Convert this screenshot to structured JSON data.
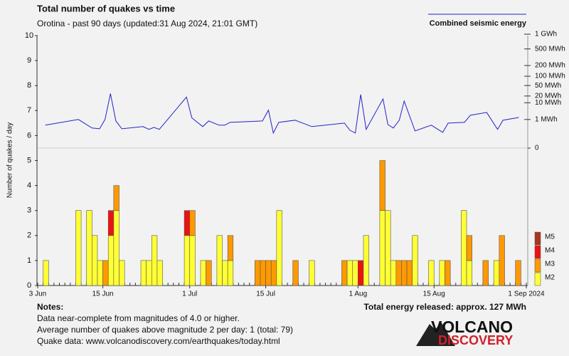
{
  "chart_data": {
    "type": "bar",
    "title": "Total number of quakes vs time",
    "subtitle": "Orotina - past 90 days (updated:31 Aug 2024, 21:01 GMT)",
    "y_label": "Number of quakes / day",
    "stacked": true,
    "xlim": [
      0,
      90
    ],
    "xticks": [
      {
        "value": 0,
        "label": "3 Jun"
      },
      {
        "value": 12,
        "label": "15 Jun"
      },
      {
        "value": 28,
        "label": "1 Jul"
      },
      {
        "value": 42,
        "label": "15 Jul"
      },
      {
        "value": 59,
        "label": "1 Aug"
      },
      {
        "value": 73,
        "label": "15 Aug"
      },
      {
        "value": 90,
        "label": "1 Sep 2024"
      }
    ],
    "ylim": [
      0,
      10
    ],
    "yticks": [
      0,
      1,
      2,
      3,
      4,
      5,
      6,
      7,
      8,
      9,
      10
    ],
    "y2lim": [
      0,
      1000
    ],
    "y2exponent": 0.2,
    "y2ticks": [
      0,
      {
        "value": 1,
        "label": "1 MWh"
      },
      {
        "value": 10,
        "label": "10 MWh"
      },
      {
        "value": 20,
        "label": "20 MWh"
      },
      {
        "value": 50,
        "label": "50 MWh"
      },
      {
        "value": 100,
        "label": "100 MWh"
      },
      {
        "value": 200,
        "label": "200 MWh"
      },
      {
        "value": 500,
        "label": "500 MWh"
      },
      {
        "value": 1000,
        "label": "1 GWh"
      }
    ],
    "x": [
      1,
      7,
      9,
      10,
      11,
      12,
      13,
      14,
      15,
      19,
      20,
      21,
      22,
      27,
      28,
      30,
      31,
      33,
      34,
      35,
      40,
      41,
      42,
      43,
      44,
      47,
      50,
      56,
      57,
      58,
      59,
      60,
      63,
      64,
      65,
      66,
      67,
      68,
      69,
      72,
      74,
      75,
      78,
      79,
      82,
      84,
      85,
      88
    ],
    "series": [
      {
        "name": "M2",
        "color": "#ffff33",
        "values": [
          1,
          3,
          3,
          2,
          1,
          0,
          2,
          3,
          1,
          1,
          1,
          2,
          1,
          2,
          2,
          1,
          0,
          2,
          1,
          1,
          0,
          0,
          0,
          0,
          3,
          0,
          1,
          0,
          1,
          1,
          0,
          2,
          3,
          3,
          1,
          0,
          0,
          0,
          2,
          1,
          1,
          0,
          3,
          1,
          0,
          1,
          0,
          0
        ]
      },
      {
        "name": "M3",
        "color": "#ff9900",
        "values": [
          0,
          0,
          0,
          0,
          0,
          1,
          0,
          1,
          0,
          0,
          0,
          0,
          0,
          0,
          1,
          0,
          1,
          0,
          0,
          1,
          1,
          1,
          1,
          1,
          0,
          1,
          0,
          1,
          0,
          0,
          0,
          0,
          2,
          0,
          0,
          1,
          1,
          1,
          0,
          0,
          0,
          1,
          0,
          1,
          1,
          0,
          2,
          1
        ]
      },
      {
        "name": "M4",
        "color": "#ee1111",
        "values": [
          0,
          0,
          0,
          0,
          0,
          0,
          1,
          0,
          0,
          0,
          0,
          0,
          0,
          1,
          0,
          0,
          0,
          0,
          0,
          0,
          0,
          0,
          0,
          0,
          0,
          0,
          0,
          0,
          0,
          0,
          1,
          0,
          0,
          0,
          0,
          0,
          0,
          0,
          0,
          0,
          0,
          0,
          0,
          0,
          0,
          0,
          0,
          0
        ]
      },
      {
        "name": "M5",
        "color": "#aa3322",
        "values": [
          0,
          0,
          0,
          0,
          0,
          0,
          0,
          0,
          0,
          0,
          0,
          0,
          0,
          0,
          0,
          0,
          0,
          0,
          0,
          0,
          0,
          0,
          0,
          0,
          0,
          0,
          0,
          0,
          0,
          0,
          0,
          0,
          0,
          0,
          0,
          0,
          0,
          0,
          0,
          0,
          0,
          0,
          0,
          0,
          0,
          0,
          0,
          0
        ]
      },
      {
        "name": "Combined seismic energy",
        "type": "line",
        "axis": "y2",
        "color": "#2222cc",
        "x": [
          1.4,
          7.5,
          10,
          11.4,
          12.4,
          13.4,
          14.4,
          15.5,
          19.4,
          20.5,
          21.4,
          22.4,
          27.4,
          28.4,
          30.4,
          31.5,
          33.4,
          34.5,
          35.4,
          41.4,
          42.5,
          43.4,
          44.4,
          47.4,
          50.5,
          56.5,
          57.5,
          58.5,
          59.5,
          60.5,
          63.6,
          64.5,
          65.5,
          66.6,
          67.5,
          69.5,
          72.5,
          74.6,
          75.6,
          78.6,
          79.7,
          82.7,
          84.7,
          85.7,
          88.6
        ],
        "values": [
          0.33,
          1,
          0.17,
          0.14,
          1,
          25,
          0.77,
          0.14,
          0.24,
          0.12,
          0.2,
          0.12,
          18,
          1.3,
          0.24,
          0.77,
          0.33,
          0.33,
          0.59,
          0.77,
          4.1,
          0.04,
          0.59,
          0.88,
          0.24,
          0.51,
          0.095,
          0.04,
          23,
          0.12,
          15,
          0.38,
          0.17,
          0.88,
          12,
          0.078,
          0.33,
          0.05,
          0.51,
          0.59,
          2,
          3,
          0.12,
          0.88,
          1.4
        ]
      }
    ],
    "total_energy": "Total energy released: approx. 127 MWh",
    "notes": {
      "title": "Notes:",
      "lines": [
        "Data near-complete from magnitudes of 4.0 or higher.",
        "Average number of quakes above magnitude 2 per day: 1 (total: 79)",
        "Quake data: www.volcanodiscovery.com/earthquakes/today.html"
      ]
    },
    "logo": {
      "top": "VOLCANO",
      "bottom": "DISCOVERY"
    }
  }
}
